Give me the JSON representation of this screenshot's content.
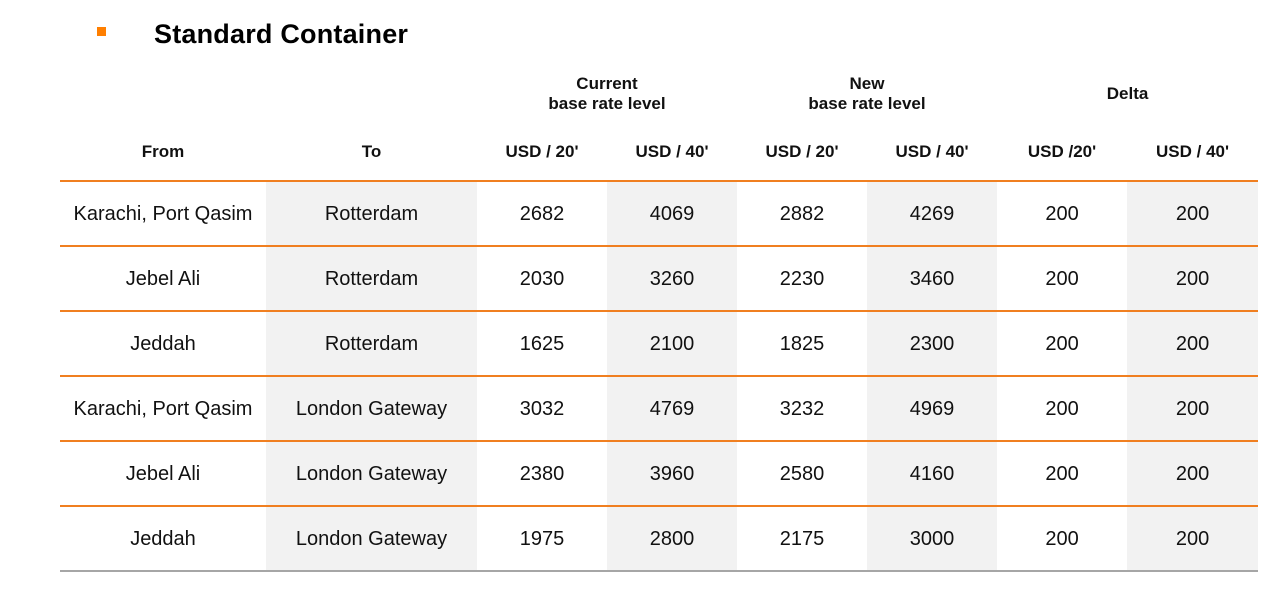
{
  "title": "Standard Container",
  "colors": {
    "accent": "#f07f20",
    "bullet": "#ff7f00",
    "shade": "#f2f2f2",
    "bottom_rule": "#a6a6a6"
  },
  "header": {
    "groups": {
      "current": {
        "line1": "Current",
        "line2": "base rate level"
      },
      "new": {
        "line1": "New",
        "line2": "base rate level"
      },
      "delta": {
        "line1": "Delta"
      }
    },
    "columns": {
      "from": "From",
      "to": "To",
      "cur20": "USD / 20'",
      "cur40": "USD / 40'",
      "new20": "USD / 20'",
      "new40": "USD / 40'",
      "delta20": "USD /20'",
      "delta40": "USD / 40'"
    }
  },
  "rows": [
    {
      "from": "Karachi, Port Qasim",
      "to": "Rotterdam",
      "cur20": "2682",
      "cur40": "4069",
      "new20": "2882",
      "new40": "4269",
      "delta20": "200",
      "delta40": "200"
    },
    {
      "from": "Jebel Ali",
      "to": "Rotterdam",
      "cur20": "2030",
      "cur40": "3260",
      "new20": "2230",
      "new40": "3460",
      "delta20": "200",
      "delta40": "200"
    },
    {
      "from": "Jeddah",
      "to": "Rotterdam",
      "cur20": "1625",
      "cur40": "2100",
      "new20": "1825",
      "new40": "2300",
      "delta20": "200",
      "delta40": "200"
    },
    {
      "from": "Karachi, Port Qasim",
      "to": "London Gateway",
      "cur20": "3032",
      "cur40": "4769",
      "new20": "3232",
      "new40": "4969",
      "delta20": "200",
      "delta40": "200"
    },
    {
      "from": "Jebel Ali",
      "to": "London Gateway",
      "cur20": "2380",
      "cur40": "3960",
      "new20": "2580",
      "new40": "4160",
      "delta20": "200",
      "delta40": "200"
    },
    {
      "from": "Jeddah",
      "to": "London Gateway",
      "cur20": "1975",
      "cur40": "2800",
      "new20": "2175",
      "new40": "3000",
      "delta20": "200",
      "delta40": "200"
    }
  ]
}
